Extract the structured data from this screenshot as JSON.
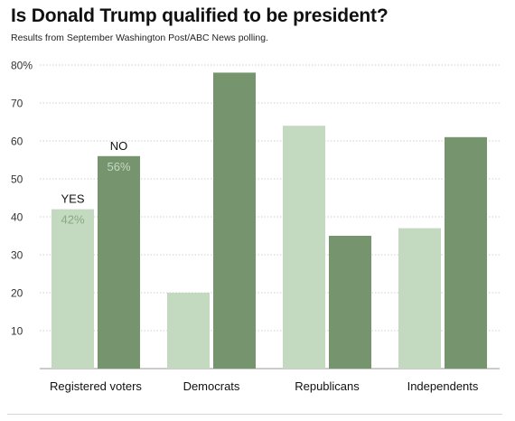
{
  "title": "Is Donald Trump qualified to be president?",
  "subtitle": "Results from September Washington Post/ABC News polling.",
  "chart_data": {
    "type": "bar",
    "categories": [
      "Registered voters",
      "Democrats",
      "Republicans",
      "Independents"
    ],
    "series": [
      {
        "name": "YES",
        "values": [
          42,
          20,
          64,
          37
        ],
        "color": "#c3d9c0"
      },
      {
        "name": "NO",
        "values": [
          56,
          78,
          35,
          61
        ],
        "color": "#76946d"
      }
    ],
    "ylim": [
      0,
      80
    ],
    "y_ticks": [
      "10",
      "20",
      "30",
      "40",
      "50",
      "60",
      "70",
      "80%"
    ],
    "grid": true,
    "annotations": [
      {
        "series": "YES",
        "category": "Registered voters",
        "label": "YES",
        "value_label": "42%"
      },
      {
        "series": "NO",
        "category": "Registered voters",
        "label": "NO",
        "value_label": "56%"
      }
    ]
  }
}
